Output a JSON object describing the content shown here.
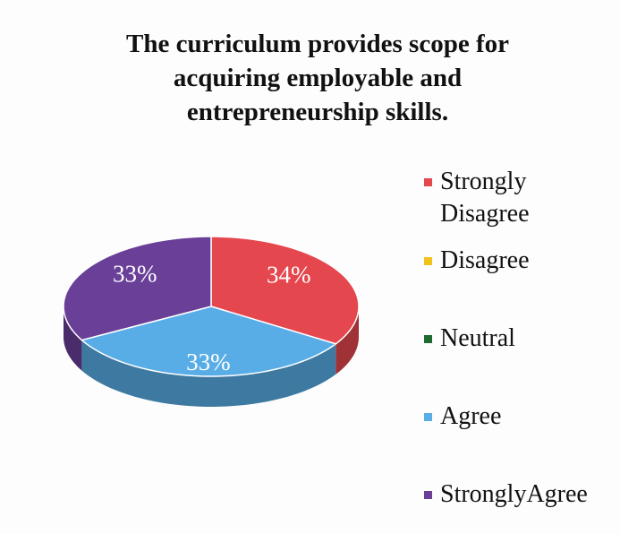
{
  "chart_data": {
    "type": "pie3d",
    "title": "The curriculum provides scope for acquiring employable and entrepreneurship skills.",
    "categories": [
      "Strongly Disagree",
      "Disagree",
      "Neutral",
      "Agree",
      "StronglyAgree"
    ],
    "values": [
      34,
      0,
      0,
      33,
      33
    ],
    "value_labels": [
      "34%",
      null,
      null,
      "33%",
      "33%"
    ],
    "colors": [
      "#e5474e",
      "#f2c21a",
      "#1f6a31",
      "#59ade6",
      "#6a3f98"
    ],
    "legend": "right"
  }
}
